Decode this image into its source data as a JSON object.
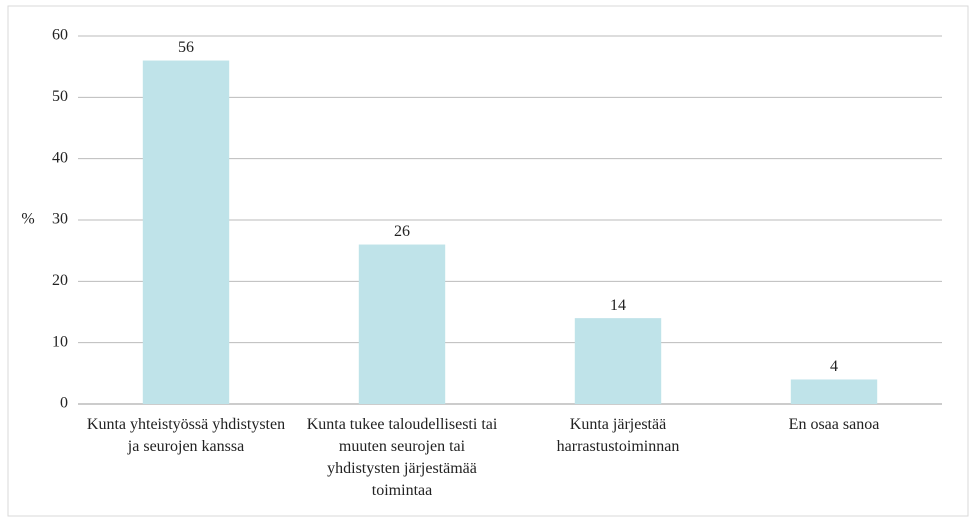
{
  "chart_data": {
    "type": "bar",
    "y_label": "%",
    "categories": [
      "Kunta yhteistyössä yhdistysten ja seurojen kanssa",
      "Kunta tukee taloudellisesti tai muuten seurojen tai yhdistysten järjestämää toimintaa",
      "Kunta järjestää harrastustoiminnan",
      "En osaa sanoa"
    ],
    "values": [
      56,
      26,
      14,
      4
    ],
    "color": "#bfe3e9",
    "ylim": [
      0,
      60
    ],
    "yticks": [
      0,
      10,
      20,
      30,
      40,
      50,
      60
    ],
    "grid": true
  }
}
